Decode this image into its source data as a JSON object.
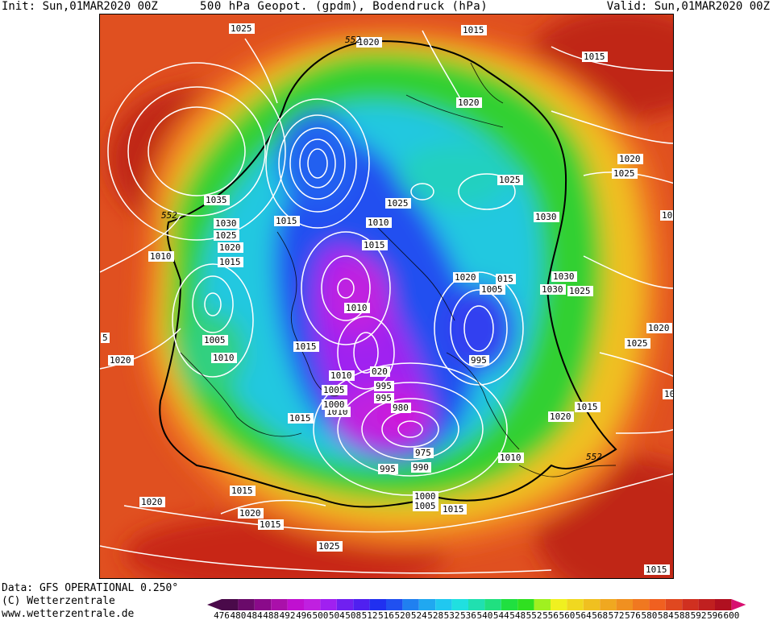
{
  "header": {
    "init": "Init: Sun,01MAR2020 00Z",
    "title": "500 hPa Geopot. (gpdm), Bodendruck (hPa)",
    "valid": "Valid: Sun,01MAR2020 00Z"
  },
  "footer": {
    "data_source": "Data: GFS OPERATIONAL 0.250°",
    "copyright": "(C) Wetterzentrale",
    "website": "www.wetterzentrale.de"
  },
  "legend": {
    "values": [
      "476",
      "480",
      "484",
      "488",
      "492",
      "496",
      "500",
      "504",
      "508",
      "512",
      "516",
      "520",
      "524",
      "528",
      "532",
      "536",
      "540",
      "544",
      "548",
      "552",
      "556",
      "560",
      "564",
      "568",
      "572",
      "576",
      "580",
      "584",
      "588",
      "592",
      "596",
      "600"
    ],
    "colors": [
      "#4a0a4a",
      "#6a0a6a",
      "#8a0a8a",
      "#aa10aa",
      "#c010d0",
      "#c020e0",
      "#a020f0",
      "#7020f0",
      "#5020f0",
      "#2030f0",
      "#2050f0",
      "#2080f0",
      "#20a8f0",
      "#20c8f0",
      "#20e0e0",
      "#20e0b0",
      "#20e080",
      "#20e040",
      "#30e020",
      "#a0f020",
      "#f0f020",
      "#f0d820",
      "#f0c020",
      "#f0a820",
      "#f09020",
      "#f07820",
      "#f06020",
      "#e04820",
      "#d03020",
      "#c02020",
      "#b01020",
      "#d81070"
    ]
  },
  "map": {
    "contour_line_color": "#ffffff",
    "h552_line_color": "#000000",
    "geopotential_labels": [
      "552",
      "552",
      "552"
    ],
    "pressure_labels": [
      "1025",
      "1020",
      "1015",
      "1015",
      "1020",
      "1035",
      "1030",
      "1025",
      "1020",
      "1015",
      "1010",
      "1015",
      "1010",
      "1015",
      "1025",
      "1025",
      "1030",
      "1020",
      "1025",
      "1020",
      "1025",
      "1030",
      "1020",
      "1005",
      "015",
      "1030",
      "1025",
      "1020",
      "1015",
      "1010",
      "1010",
      "1020",
      "1005",
      "1010",
      "020",
      "5",
      "1015",
      "1010",
      "1005",
      "1000",
      "995",
      "995",
      "995",
      "980",
      "975",
      "990",
      "995",
      "1015",
      "1020",
      "1015",
      "1010",
      "1000",
      "1005",
      "1015",
      "1020",
      "1015",
      "1020",
      "1025",
      "1015",
      "10"
    ]
  }
}
